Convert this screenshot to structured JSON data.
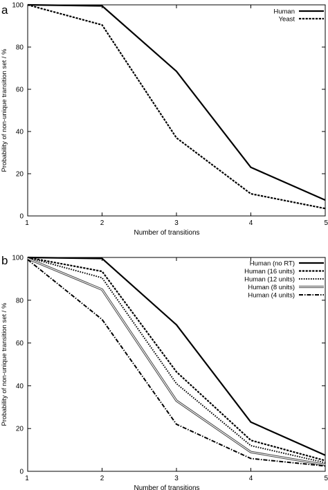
{
  "chart_data": [
    {
      "panel_label": "a",
      "type": "line",
      "x": [
        1,
        2,
        3,
        4,
        5
      ],
      "xlabel": "Number of transitions",
      "ylabel": "Probability of non-unique transition set / %",
      "xlim": [
        1,
        5
      ],
      "ylim": [
        0,
        100
      ],
      "xticks": [
        "1",
        "2",
        "3",
        "4",
        "5"
      ],
      "yticks": [
        "0",
        "20",
        "40",
        "60",
        "80",
        "100"
      ],
      "grid": false,
      "legend_position": "top-right",
      "series": [
        {
          "name": "Human",
          "style": "solid",
          "color": "#000000",
          "values": [
            100,
            99.5,
            68.5,
            23,
            7.5
          ]
        },
        {
          "name": "Yeast",
          "style": "dashed",
          "color": "#000000",
          "values": [
            100,
            90.5,
            37,
            10.5,
            3.5
          ]
        }
      ]
    },
    {
      "panel_label": "b",
      "type": "line",
      "x": [
        1,
        2,
        3,
        4,
        5
      ],
      "xlabel": "Number of transitions",
      "ylabel": "Probability of non-unique transition set / %",
      "xlim": [
        1,
        5
      ],
      "ylim": [
        0,
        100
      ],
      "xticks": [
        "1",
        "2",
        "3",
        "4",
        "5"
      ],
      "yticks": [
        "0",
        "20",
        "40",
        "60",
        "80",
        "100"
      ],
      "grid": false,
      "legend_position": "top-right",
      "series": [
        {
          "name": "Human (no RT)",
          "style": "solid",
          "color": "#000000",
          "values": [
            100,
            99.5,
            68.5,
            23,
            7.5
          ]
        },
        {
          "name": "Human (16 units)",
          "style": "dashed",
          "color": "#000000",
          "values": [
            100,
            93.5,
            46.5,
            14.5,
            5
          ]
        },
        {
          "name": "Human (12 units)",
          "style": "dotted",
          "color": "#000000",
          "values": [
            100,
            90.5,
            41,
            12,
            4
          ]
        },
        {
          "name": "Human (8 units)",
          "style": "double",
          "color": "#555555",
          "values": [
            99.5,
            85,
            33,
            9,
            3
          ]
        },
        {
          "name": "Human (4 units)",
          "style": "dashdot",
          "color": "#000000",
          "values": [
            99,
            71,
            22,
            6,
            2.5
          ]
        }
      ]
    }
  ]
}
